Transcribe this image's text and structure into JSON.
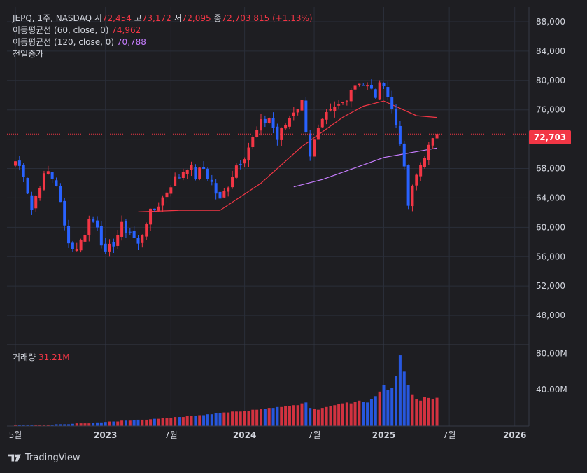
{
  "legend": {
    "symbol": "JEPQ, 1주, NASDAQ",
    "open_label": "시",
    "open": "72,454",
    "high_label": "고",
    "high": "73,172",
    "low_label": "저",
    "low": "72,095",
    "close_label": "종",
    "close": "72,703",
    "change": "815 (+1.13%)",
    "ma60_label": "이동평균선 (60, close, 0)",
    "ma60_value": "74,962",
    "ma120_label": "이동평균선 (120, close, 0)",
    "ma120_value": "70,788",
    "prev_close_label": "전일종가"
  },
  "volume_legend": {
    "label": "거래량",
    "value": "31.21M"
  },
  "last_price_tag": "72,703",
  "footer": {
    "brand": "TradingView"
  },
  "colors": {
    "up": "#f23645",
    "down": "#2962ff",
    "ma60": "#f23645",
    "ma120": "#c77dff",
    "background": "#1e1e22",
    "grid": "#2a2e39"
  },
  "chart_data": [
    {
      "type": "candlestick",
      "title": "JEPQ, 1주, NASDAQ",
      "x_tick_labels": [
        "5월",
        "2023",
        "7월",
        "2024",
        "7월",
        "2025",
        "7월",
        "2026"
      ],
      "y_tick_labels": [
        "88,000",
        "84,000",
        "80,000",
        "76,000",
        "72,000",
        "68,000",
        "64,000",
        "60,000",
        "56,000",
        "52,000",
        "48,000"
      ],
      "ylim": [
        44000,
        90000
      ],
      "price_path": [
        [
          0,
          69000
        ],
        [
          2,
          67500
        ],
        [
          4,
          62500
        ],
        [
          6,
          66000
        ],
        [
          8,
          67500
        ],
        [
          10,
          66000
        ],
        [
          12,
          60000
        ],
        [
          14,
          57000
        ],
        [
          16,
          58000
        ],
        [
          18,
          61000
        ],
        [
          20,
          60500
        ],
        [
          22,
          56000
        ],
        [
          24,
          58000
        ],
        [
          26,
          60000
        ],
        [
          28,
          59500
        ],
        [
          30,
          57500
        ],
        [
          32,
          61000
        ],
        [
          34,
          62500
        ],
        [
          36,
          64000
        ],
        [
          38,
          66000
        ],
        [
          40,
          67000
        ],
        [
          42,
          68500
        ],
        [
          44,
          67000
        ],
        [
          46,
          68000
        ],
        [
          48,
          66000
        ],
        [
          50,
          63500
        ],
        [
          52,
          66000
        ],
        [
          54,
          68500
        ],
        [
          56,
          70000
        ],
        [
          58,
          72000
        ],
        [
          60,
          74000
        ],
        [
          62,
          75000
        ],
        [
          64,
          72000
        ],
        [
          66,
          74000
        ],
        [
          68,
          76000
        ],
        [
          70,
          77000
        ],
        [
          72,
          70000
        ],
        [
          74,
          73000
        ],
        [
          76,
          75000
        ],
        [
          78,
          76000
        ],
        [
          80,
          77000
        ],
        [
          82,
          79000
        ],
        [
          84,
          80000
        ],
        [
          86,
          79000
        ],
        [
          88,
          78000
        ],
        [
          90,
          80000
        ],
        [
          92,
          76000
        ],
        [
          94,
          72000
        ],
        [
          96,
          63000
        ],
        [
          98,
          67000
        ],
        [
          100,
          70000
        ],
        [
          102,
          71500
        ],
        [
          103,
          72703
        ]
      ],
      "series": [
        {
          "name": "이동평균선 (60, close, 0)",
          "start_week": 30,
          "x": [
            30,
            40,
            50,
            60,
            70,
            75,
            80,
            85,
            90,
            94,
            98,
            103
          ],
          "values": [
            62100,
            62300,
            62300,
            66000,
            71000,
            73000,
            75000,
            76500,
            77200,
            76200,
            75200,
            74962
          ]
        },
        {
          "name": "이동평균선 (120, close, 0)",
          "start_week": 68,
          "x": [
            68,
            75,
            80,
            85,
            90,
            95,
            100,
            103
          ],
          "values": [
            65500,
            66500,
            67500,
            68500,
            69500,
            70000,
            70500,
            70788
          ]
        }
      ],
      "prev_close_line": 72703,
      "last_price": 72703
    },
    {
      "type": "bar",
      "title": "거래량",
      "y_tick_labels": [
        "80.00M",
        "40.00M"
      ],
      "ylim": [
        0,
        85
      ],
      "last_value": 31.21,
      "volume_by_week": [
        1,
        1,
        1,
        1,
        1,
        1,
        1,
        1,
        1.5,
        1.5,
        2,
        2,
        2,
        2,
        2.5,
        3,
        3,
        3,
        3,
        3.5,
        4,
        4,
        4.5,
        5,
        5,
        5,
        6,
        6,
        6,
        6.5,
        7,
        7,
        7,
        7.5,
        8,
        8,
        8.5,
        9,
        9,
        10,
        10,
        10,
        11,
        11,
        11,
        12,
        12,
        13,
        13,
        14,
        14,
        15,
        15,
        16,
        16,
        16,
        17,
        17,
        18,
        18,
        19,
        19,
        20,
        20,
        21,
        21,
        22,
        22,
        23,
        23,
        25,
        26,
        20,
        19,
        18,
        20,
        21,
        22,
        23,
        24,
        25,
        26,
        25,
        27,
        28,
        27,
        26,
        30,
        33,
        38,
        45,
        40,
        42,
        55,
        78,
        60,
        45,
        35,
        30,
        28,
        32,
        31,
        30,
        31.21
      ]
    }
  ]
}
